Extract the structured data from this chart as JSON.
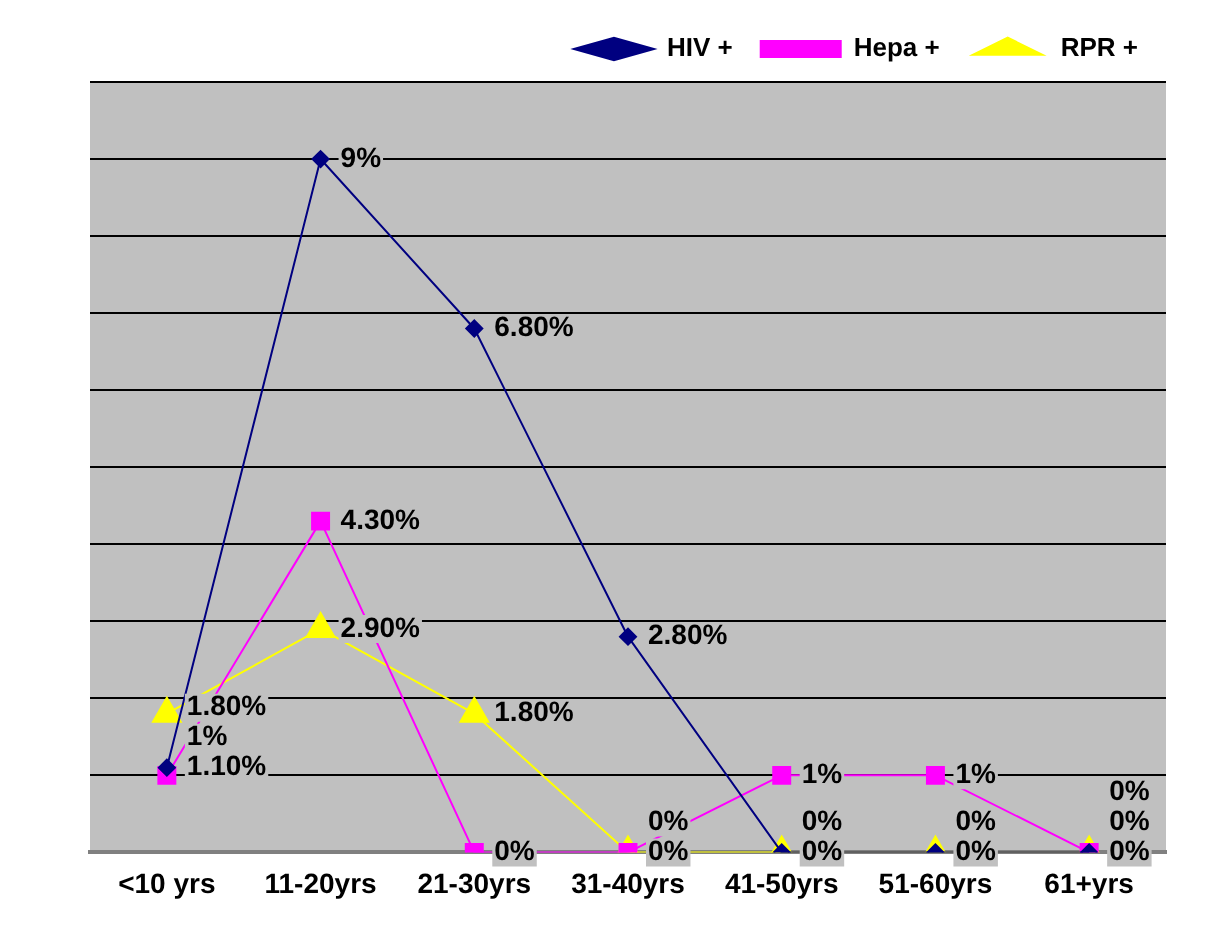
{
  "chart_data": {
    "type": "line",
    "categories": [
      "<10 yrs",
      "11-20yrs",
      "21-30yrs",
      "31-40yrs",
      "41-50yrs",
      "51-60yrs",
      "61+yrs"
    ],
    "series": [
      {
        "name": "HIV +",
        "color": "#000080",
        "marker": "diamond",
        "values": [
          1.1,
          9,
          6.8,
          2.8,
          0,
          0,
          0
        ],
        "value_labels": [
          "1.10%",
          "9%",
          "6.80%",
          "2.80%",
          "0%",
          "0%",
          "0%"
        ]
      },
      {
        "name": "Hepa +",
        "color": "#ff00ff",
        "marker": "square",
        "values": [
          1,
          4.3,
          0,
          0,
          1,
          1,
          0
        ],
        "value_labels": [
          "1%",
          "4.30%",
          "0%",
          "0%",
          "1%",
          "1%",
          "0%"
        ]
      },
      {
        "name": "RPR +",
        "color": "#ffff00",
        "marker": "triangle",
        "values": [
          1.8,
          2.9,
          1.8,
          0,
          0,
          0,
          0
        ],
        "value_labels": [
          "1.80%",
          "2.90%",
          "1.80%",
          "0%",
          "0%",
          "0%",
          "0%"
        ]
      }
    ],
    "ylim": [
      0,
      10
    ],
    "yticks": [
      {
        "value": 0,
        "label": null
      },
      {
        "value": 1,
        "label": null
      },
      {
        "value": 2,
        "label": null
      },
      {
        "value": 3,
        "label": null
      },
      {
        "value": 4,
        "label": null
      },
      {
        "value": 5,
        "label": null
      },
      {
        "value": 6,
        "label": null
      },
      {
        "value": 7,
        "label": null
      },
      {
        "value": 8,
        "label": null
      },
      {
        "value": 9,
        "label": null
      },
      {
        "value": 10,
        "label": null
      }
    ],
    "tick_labels": "x",
    "grid": "y",
    "legend": "top right"
  }
}
